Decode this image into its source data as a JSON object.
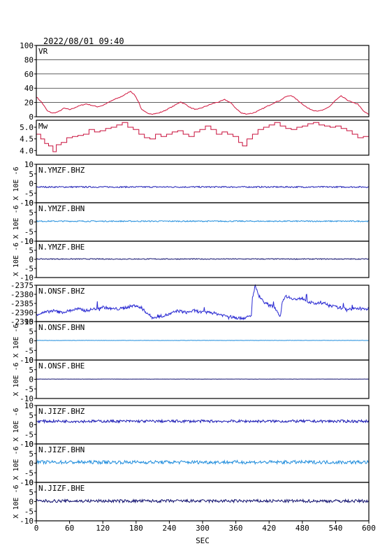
{
  "header": {
    "datetime": "2022/08/01 09:40"
  },
  "colors": {
    "vr": "#d0143c",
    "mw": "#c8103c",
    "dark_blue": "#1a1ab4",
    "blue": "#2a2ad2",
    "light_blue": "#1e8cdc",
    "navy": "#10106e",
    "grid": "#000000"
  },
  "chart_data": {
    "type": "line",
    "x_label": "SEC",
    "x_range": [
      0,
      600
    ],
    "x_ticks": [
      0,
      60,
      120,
      180,
      240,
      300,
      360,
      420,
      480,
      540,
      600
    ],
    "panels": [
      {
        "id": "vr",
        "label": "VR",
        "y_range": [
          0,
          100
        ],
        "y_ticks": [
          0,
          20,
          40,
          60,
          80,
          100
        ],
        "grid": true,
        "color_key": "vr",
        "points": [
          [
            0,
            28
          ],
          [
            10,
            20
          ],
          [
            20,
            8
          ],
          [
            30,
            5
          ],
          [
            40,
            7
          ],
          [
            50,
            12
          ],
          [
            60,
            10
          ],
          [
            70,
            13
          ],
          [
            80,
            16
          ],
          [
            90,
            18
          ],
          [
            100,
            16
          ],
          [
            110,
            14
          ],
          [
            120,
            16
          ],
          [
            130,
            20
          ],
          [
            140,
            24
          ],
          [
            150,
            27
          ],
          [
            160,
            31
          ],
          [
            170,
            36
          ],
          [
            178,
            30
          ],
          [
            185,
            20
          ],
          [
            190,
            10
          ],
          [
            200,
            5
          ],
          [
            210,
            4
          ],
          [
            220,
            5
          ],
          [
            230,
            8
          ],
          [
            240,
            12
          ],
          [
            250,
            16
          ],
          [
            260,
            21
          ],
          [
            270,
            17
          ],
          [
            280,
            12
          ],
          [
            290,
            10
          ],
          [
            300,
            13
          ],
          [
            310,
            16
          ],
          [
            320,
            19
          ],
          [
            330,
            21
          ],
          [
            340,
            24
          ],
          [
            350,
            20
          ],
          [
            360,
            12
          ],
          [
            370,
            5
          ],
          [
            380,
            4
          ],
          [
            390,
            5
          ],
          [
            400,
            8
          ],
          [
            410,
            12
          ],
          [
            420,
            16
          ],
          [
            430,
            20
          ],
          [
            440,
            23
          ],
          [
            450,
            28
          ],
          [
            460,
            30
          ],
          [
            470,
            24
          ],
          [
            480,
            18
          ],
          [
            490,
            12
          ],
          [
            500,
            9
          ],
          [
            510,
            8
          ],
          [
            520,
            10
          ],
          [
            530,
            15
          ],
          [
            540,
            23
          ],
          [
            550,
            29
          ],
          [
            560,
            24
          ],
          [
            570,
            20
          ],
          [
            580,
            18
          ],
          [
            590,
            8
          ],
          [
            600,
            3
          ]
        ]
      },
      {
        "id": "mw",
        "label": "Mw",
        "y_range": [
          3.8,
          5.3
        ],
        "y_ticks": [
          4.0,
          4.5,
          5.0
        ],
        "y_tick_labels": [
          "4.0",
          "4.5",
          "5.0"
        ],
        "grid": false,
        "color_key": "mw",
        "step": true,
        "points": [
          [
            0,
            4.7
          ],
          [
            8,
            4.5
          ],
          [
            15,
            4.3
          ],
          [
            22,
            4.2
          ],
          [
            30,
            3.95
          ],
          [
            36,
            4.25
          ],
          [
            45,
            4.35
          ],
          [
            55,
            4.55
          ],
          [
            65,
            4.6
          ],
          [
            75,
            4.65
          ],
          [
            85,
            4.7
          ],
          [
            95,
            4.9
          ],
          [
            105,
            4.8
          ],
          [
            115,
            4.85
          ],
          [
            125,
            4.95
          ],
          [
            135,
            5.0
          ],
          [
            145,
            5.1
          ],
          [
            155,
            5.2
          ],
          [
            165,
            5.0
          ],
          [
            175,
            4.9
          ],
          [
            185,
            4.7
          ],
          [
            195,
            4.55
          ],
          [
            205,
            4.5
          ],
          [
            215,
            4.7
          ],
          [
            225,
            4.6
          ],
          [
            235,
            4.7
          ],
          [
            245,
            4.8
          ],
          [
            255,
            4.85
          ],
          [
            265,
            4.7
          ],
          [
            275,
            4.6
          ],
          [
            285,
            4.8
          ],
          [
            295,
            4.9
          ],
          [
            305,
            5.05
          ],
          [
            315,
            4.9
          ],
          [
            325,
            4.7
          ],
          [
            335,
            4.8
          ],
          [
            345,
            4.7
          ],
          [
            355,
            4.6
          ],
          [
            365,
            4.35
          ],
          [
            372,
            4.2
          ],
          [
            380,
            4.5
          ],
          [
            390,
            4.7
          ],
          [
            400,
            4.9
          ],
          [
            410,
            5.0
          ],
          [
            420,
            5.1
          ],
          [
            430,
            5.2
          ],
          [
            440,
            5.05
          ],
          [
            450,
            4.95
          ],
          [
            460,
            4.9
          ],
          [
            470,
            5.0
          ],
          [
            480,
            5.05
          ],
          [
            490,
            5.15
          ],
          [
            500,
            5.2
          ],
          [
            510,
            5.1
          ],
          [
            520,
            5.05
          ],
          [
            530,
            5.0
          ],
          [
            540,
            5.05
          ],
          [
            550,
            4.95
          ],
          [
            560,
            4.85
          ],
          [
            570,
            4.7
          ],
          [
            580,
            4.55
          ],
          [
            590,
            4.6
          ],
          [
            600,
            4.8
          ]
        ]
      },
      {
        "id": "ymzf_bhz",
        "label": "N.YMZF.BHZ",
        "y_range": [
          -10,
          10
        ],
        "y_ticks": [
          -10,
          -5,
          0,
          5,
          10
        ],
        "color_key": "dark_blue",
        "offset": -1.8,
        "amplitude": 0.35
      },
      {
        "id": "ymzf_bhn",
        "label": "N.YMZF.BHN",
        "y_range": [
          -10,
          10
        ],
        "y_ticks": [
          -10,
          -5,
          0,
          5,
          10
        ],
        "color_key": "light_blue",
        "offset": 0.4,
        "amplitude": 0.3
      },
      {
        "id": "ymzf_bhe",
        "label": "N.YMZF.BHE",
        "y_range": [
          -10,
          10
        ],
        "y_ticks": [
          -10,
          -5,
          0,
          5,
          10
        ],
        "color_key": "navy",
        "offset": 0.2,
        "amplitude": 0.25
      },
      {
        "id": "onsf_bhz",
        "label": "N.ONSF.BHZ",
        "y_range": [
          -2395,
          -2375
        ],
        "y_ticks": [
          -2395,
          -2390,
          -2385,
          -2380,
          -2375
        ],
        "color_key": "blue",
        "points": [
          [
            0,
            -2391
          ],
          [
            15,
            -2390
          ],
          [
            30,
            -2389
          ],
          [
            45,
            -2390
          ],
          [
            60,
            -2389
          ],
          [
            75,
            -2388
          ],
          [
            90,
            -2389
          ],
          [
            105,
            -2388
          ],
          [
            120,
            -2387
          ],
          [
            135,
            -2388
          ],
          [
            150,
            -2388
          ],
          [
            165,
            -2387
          ],
          [
            180,
            -2386
          ],
          [
            195,
            -2389
          ],
          [
            210,
            -2393
          ],
          [
            225,
            -2392
          ],
          [
            240,
            -2391
          ],
          [
            255,
            -2389
          ],
          [
            270,
            -2390
          ],
          [
            285,
            -2389
          ],
          [
            300,
            -2390
          ],
          [
            315,
            -2390
          ],
          [
            330,
            -2391
          ],
          [
            345,
            -2392
          ],
          [
            360,
            -2393
          ],
          [
            375,
            -2393
          ],
          [
            388,
            -2392
          ],
          [
            390,
            -2382
          ],
          [
            395,
            -2375
          ],
          [
            400,
            -2380
          ],
          [
            410,
            -2384
          ],
          [
            420,
            -2386
          ],
          [
            430,
            -2387
          ],
          [
            440,
            -2392
          ],
          [
            445,
            -2383
          ],
          [
            450,
            -2381
          ],
          [
            460,
            -2382
          ],
          [
            470,
            -2383
          ],
          [
            480,
            -2382
          ],
          [
            490,
            -2384
          ],
          [
            500,
            -2385
          ],
          [
            510,
            -2385
          ],
          [
            520,
            -2385
          ],
          [
            540,
            -2387
          ],
          [
            560,
            -2388
          ],
          [
            580,
            -2388
          ],
          [
            600,
            -2388
          ]
        ]
      },
      {
        "id": "onsf_bhn",
        "label": "N.ONSF.BHN",
        "y_range": [
          -10,
          10
        ],
        "y_ticks": [
          -10,
          -5,
          0,
          5,
          10
        ],
        "color_key": "light_blue",
        "offset": 0.2,
        "amplitude": 0.08
      },
      {
        "id": "onsf_bhe",
        "label": "N.ONSF.BHE",
        "y_range": [
          -10,
          10
        ],
        "y_ticks": [
          -10,
          -5,
          0,
          5,
          10
        ],
        "color_key": "navy",
        "offset": 0.1,
        "amplitude": 0.05
      },
      {
        "id": "jizf_bhz",
        "label": "N.JIZF.BHZ",
        "y_range": [
          -10,
          10
        ],
        "y_ticks": [
          -10,
          -5,
          0,
          5,
          10
        ],
        "color_key": "dark_blue",
        "offset": 1.8,
        "amplitude": 0.7
      },
      {
        "id": "jizf_bhn",
        "label": "N.JIZF.BHN",
        "y_range": [
          -10,
          10
        ],
        "y_ticks": [
          -10,
          -5,
          0,
          5,
          10
        ],
        "color_key": "light_blue",
        "offset": 0.5,
        "amplitude": 0.9
      },
      {
        "id": "jizf_bhe",
        "label": "N.JIZF.BHE",
        "y_range": [
          -10,
          10
        ],
        "y_ticks": [
          -10,
          -5,
          0,
          5,
          10
        ],
        "color_key": "navy",
        "offset": 0.3,
        "amplitude": 0.8
      }
    ],
    "ylabel_seismo": "X 10E -6"
  }
}
